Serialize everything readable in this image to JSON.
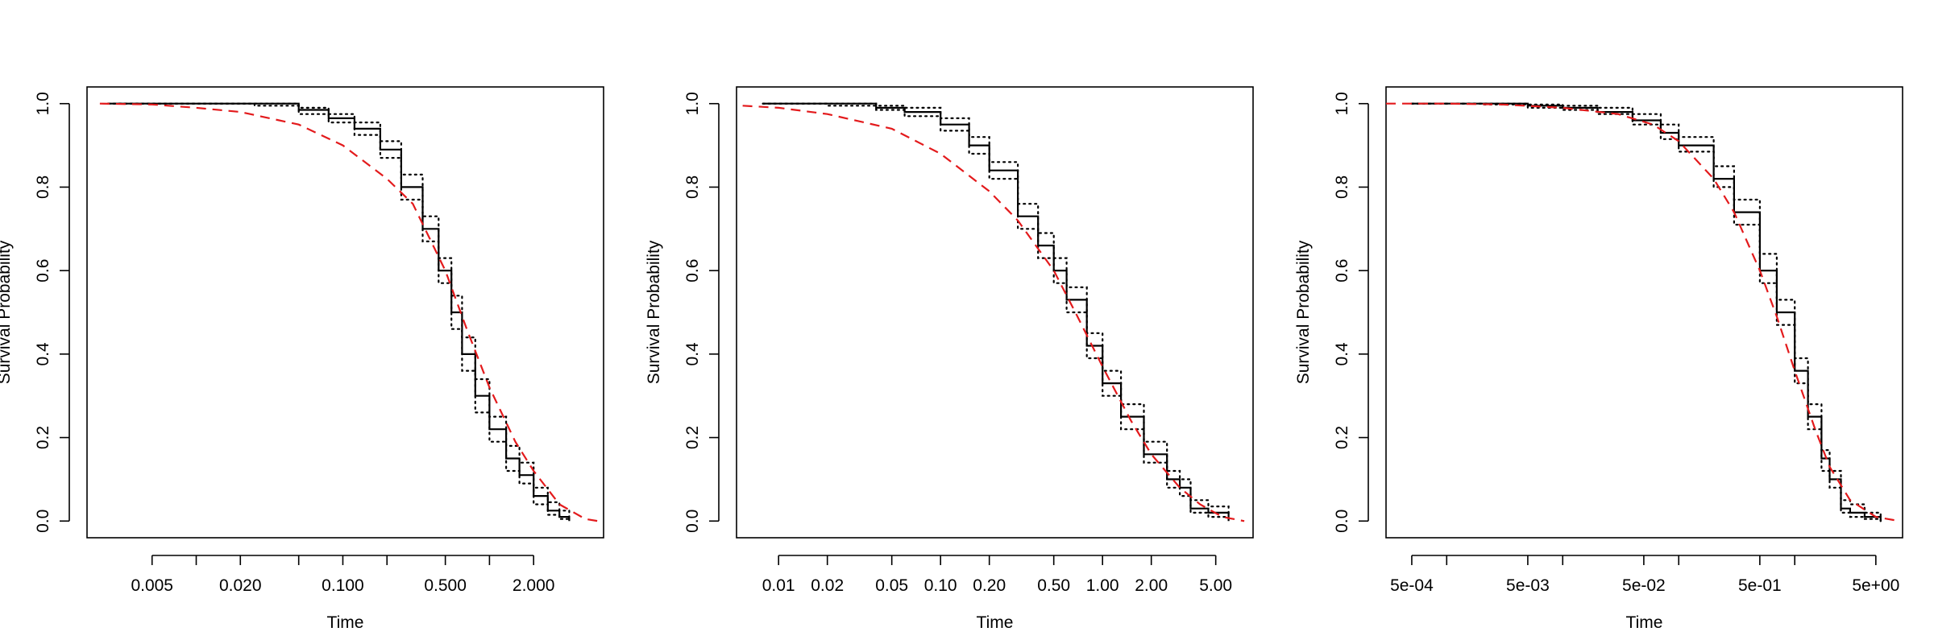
{
  "colors": {
    "km": "#000000",
    "ci": "#000000",
    "fit": "#e31a1c"
  },
  "chart_data": [
    {
      "type": "line",
      "xscale": "log",
      "xlabel": "Time",
      "ylabel": "Survival Probability",
      "xlim": [
        0.0018,
        6.0
      ],
      "ylim": [
        -0.04,
        1.04
      ],
      "grid": false,
      "legend": "none",
      "x_ticks": [
        {
          "v": 0.005,
          "label": "0.005"
        },
        {
          "v": 0.01,
          "label": ""
        },
        {
          "v": 0.02,
          "label": "0.020"
        },
        {
          "v": 0.05,
          "label": ""
        },
        {
          "v": 0.1,
          "label": "0.100"
        },
        {
          "v": 0.2,
          "label": ""
        },
        {
          "v": 0.5,
          "label": "0.500"
        },
        {
          "v": 1.0,
          "label": ""
        },
        {
          "v": 2.0,
          "label": "2.000"
        }
      ],
      "y_ticks": [
        {
          "v": 0.0,
          "label": "0.0"
        },
        {
          "v": 0.2,
          "label": "0.2"
        },
        {
          "v": 0.4,
          "label": "0.4"
        },
        {
          "v": 0.6,
          "label": "0.6"
        },
        {
          "v": 0.8,
          "label": "0.8"
        },
        {
          "v": 1.0,
          "label": "1.0"
        }
      ],
      "series": [
        {
          "role": "km",
          "x": [
            0.0025,
            0.01,
            0.025,
            0.05,
            0.08,
            0.12,
            0.18,
            0.25,
            0.35,
            0.45,
            0.55,
            0.65,
            0.8,
            1.0,
            1.3,
            1.6,
            2.0,
            2.5,
            3.0,
            3.5
          ],
          "y": [
            1.0,
            1.0,
            1.0,
            0.985,
            0.965,
            0.94,
            0.89,
            0.8,
            0.7,
            0.6,
            0.5,
            0.4,
            0.3,
            0.22,
            0.15,
            0.11,
            0.06,
            0.025,
            0.01,
            0.0
          ]
        },
        {
          "role": "ci",
          "x": [
            0.0025,
            0.01,
            0.025,
            0.05,
            0.08,
            0.12,
            0.18,
            0.25,
            0.35,
            0.45,
            0.55,
            0.65,
            0.8,
            1.0,
            1.3,
            1.6,
            2.0,
            2.5,
            3.0,
            3.5
          ],
          "y": [
            1.0,
            1.0,
            1.0,
            0.99,
            0.975,
            0.955,
            0.91,
            0.83,
            0.73,
            0.63,
            0.54,
            0.44,
            0.34,
            0.25,
            0.18,
            0.14,
            0.08,
            0.045,
            0.025,
            0.0
          ]
        },
        {
          "role": "ci",
          "x": [
            0.0025,
            0.01,
            0.025,
            0.05,
            0.08,
            0.12,
            0.18,
            0.25,
            0.35,
            0.45,
            0.55,
            0.65,
            0.8,
            1.0,
            1.3,
            1.6,
            2.0,
            2.5,
            3.0,
            3.5
          ],
          "y": [
            1.0,
            1.0,
            0.995,
            0.975,
            0.955,
            0.925,
            0.87,
            0.77,
            0.67,
            0.57,
            0.46,
            0.36,
            0.26,
            0.19,
            0.12,
            0.09,
            0.04,
            0.015,
            0.005,
            0.0
          ]
        },
        {
          "role": "fit",
          "x": [
            0.0022,
            0.005,
            0.01,
            0.02,
            0.05,
            0.1,
            0.2,
            0.3,
            0.5,
            0.7,
            1.0,
            1.5,
            2.0,
            3.0,
            4.5,
            5.5
          ],
          "y": [
            1.0,
            0.998,
            0.99,
            0.98,
            0.95,
            0.9,
            0.82,
            0.76,
            0.6,
            0.46,
            0.32,
            0.19,
            0.12,
            0.04,
            0.005,
            0.0
          ]
        }
      ]
    },
    {
      "type": "line",
      "xscale": "log",
      "xlabel": "Time",
      "ylabel": "Survival Probability",
      "xlim": [
        0.0055,
        8.5
      ],
      "ylim": [
        -0.04,
        1.04
      ],
      "grid": false,
      "legend": "none",
      "x_ticks": [
        {
          "v": 0.01,
          "label": "0.01"
        },
        {
          "v": 0.02,
          "label": "0.02"
        },
        {
          "v": 0.05,
          "label": "0.05"
        },
        {
          "v": 0.1,
          "label": "0.10"
        },
        {
          "v": 0.2,
          "label": "0.20"
        },
        {
          "v": 0.5,
          "label": "0.50"
        },
        {
          "v": 1.0,
          "label": "1.00"
        },
        {
          "v": 2.0,
          "label": "2.00"
        },
        {
          "v": 5.0,
          "label": "5.00"
        }
      ],
      "y_ticks": [
        {
          "v": 0.0,
          "label": "0.0"
        },
        {
          "v": 0.2,
          "label": "0.2"
        },
        {
          "v": 0.4,
          "label": "0.4"
        },
        {
          "v": 0.6,
          "label": "0.6"
        },
        {
          "v": 0.8,
          "label": "0.8"
        },
        {
          "v": 1.0,
          "label": "1.0"
        }
      ],
      "series": [
        {
          "role": "km",
          "x": [
            0.008,
            0.02,
            0.04,
            0.06,
            0.1,
            0.15,
            0.2,
            0.3,
            0.4,
            0.5,
            0.6,
            0.8,
            1.0,
            1.3,
            1.8,
            2.5,
            3.0,
            3.5,
            4.5,
            6.0
          ],
          "y": [
            1.0,
            1.0,
            0.99,
            0.98,
            0.95,
            0.9,
            0.84,
            0.73,
            0.66,
            0.6,
            0.53,
            0.42,
            0.33,
            0.25,
            0.16,
            0.1,
            0.08,
            0.03,
            0.02,
            0.0
          ]
        },
        {
          "role": "ci",
          "x": [
            0.008,
            0.02,
            0.04,
            0.06,
            0.1,
            0.15,
            0.2,
            0.3,
            0.4,
            0.5,
            0.6,
            0.8,
            1.0,
            1.3,
            1.8,
            2.5,
            3.0,
            3.5,
            4.5,
            6.0
          ],
          "y": [
            1.0,
            1.0,
            0.995,
            0.99,
            0.965,
            0.92,
            0.86,
            0.76,
            0.69,
            0.63,
            0.56,
            0.45,
            0.36,
            0.28,
            0.19,
            0.12,
            0.1,
            0.05,
            0.035,
            0.01
          ]
        },
        {
          "role": "ci",
          "x": [
            0.008,
            0.02,
            0.04,
            0.06,
            0.1,
            0.15,
            0.2,
            0.3,
            0.4,
            0.5,
            0.6,
            0.8,
            1.0,
            1.3,
            1.8,
            2.5,
            3.0,
            3.5,
            4.5,
            6.0
          ],
          "y": [
            1.0,
            0.995,
            0.985,
            0.97,
            0.935,
            0.88,
            0.82,
            0.7,
            0.63,
            0.57,
            0.5,
            0.39,
            0.3,
            0.22,
            0.14,
            0.08,
            0.06,
            0.02,
            0.01,
            0.0
          ]
        },
        {
          "role": "fit",
          "x": [
            0.006,
            0.01,
            0.02,
            0.05,
            0.1,
            0.2,
            0.3,
            0.5,
            0.7,
            1.0,
            1.5,
            2.0,
            3.0,
            4.0,
            5.5,
            7.5
          ],
          "y": [
            0.995,
            0.99,
            0.975,
            0.94,
            0.88,
            0.79,
            0.72,
            0.6,
            0.49,
            0.37,
            0.24,
            0.16,
            0.08,
            0.04,
            0.01,
            0.0
          ]
        }
      ]
    },
    {
      "type": "line",
      "xscale": "log",
      "xlabel": "Time",
      "ylabel": "Survival Probability",
      "xlim": [
        0.0003,
        8.5
      ],
      "ylim": [
        -0.04,
        1.04
      ],
      "grid": false,
      "legend": "none",
      "x_ticks": [
        {
          "v": 0.0005,
          "label": "5e-04"
        },
        {
          "v": 0.001,
          "label": ""
        },
        {
          "v": 0.005,
          "label": "5e-03"
        },
        {
          "v": 0.01,
          "label": ""
        },
        {
          "v": 0.05,
          "label": "5e-02"
        },
        {
          "v": 0.1,
          "label": ""
        },
        {
          "v": 0.5,
          "label": "5e-01"
        },
        {
          "v": 1.0,
          "label": ""
        },
        {
          "v": 5.0,
          "label": "5e+00"
        }
      ],
      "y_ticks": [
        {
          "v": 0.0,
          "label": "0.0"
        },
        {
          "v": 0.2,
          "label": "0.2"
        },
        {
          "v": 0.4,
          "label": "0.4"
        },
        {
          "v": 0.6,
          "label": "0.6"
        },
        {
          "v": 0.8,
          "label": "0.8"
        },
        {
          "v": 1.0,
          "label": "1.0"
        }
      ],
      "series": [
        {
          "role": "km",
          "x": [
            0.0005,
            0.002,
            0.005,
            0.01,
            0.02,
            0.04,
            0.07,
            0.1,
            0.2,
            0.3,
            0.5,
            0.7,
            1.0,
            1.3,
            1.7,
            2.0,
            2.5,
            3.0,
            4.0,
            5.5
          ],
          "y": [
            1.0,
            1.0,
            0.995,
            0.99,
            0.98,
            0.96,
            0.93,
            0.9,
            0.82,
            0.74,
            0.6,
            0.5,
            0.36,
            0.25,
            0.15,
            0.1,
            0.03,
            0.02,
            0.01,
            0.0
          ]
        },
        {
          "role": "ci",
          "x": [
            0.0005,
            0.002,
            0.005,
            0.01,
            0.02,
            0.04,
            0.07,
            0.1,
            0.2,
            0.3,
            0.5,
            0.7,
            1.0,
            1.3,
            1.7,
            2.0,
            2.5,
            3.0,
            4.0,
            5.5
          ],
          "y": [
            1.0,
            1.0,
            0.998,
            0.995,
            0.99,
            0.975,
            0.95,
            0.92,
            0.85,
            0.77,
            0.64,
            0.53,
            0.39,
            0.28,
            0.17,
            0.12,
            0.05,
            0.04,
            0.02,
            0.0
          ]
        },
        {
          "role": "ci",
          "x": [
            0.0005,
            0.002,
            0.005,
            0.01,
            0.02,
            0.04,
            0.07,
            0.1,
            0.2,
            0.3,
            0.5,
            0.7,
            1.0,
            1.3,
            1.7,
            2.0,
            2.5,
            3.0,
            4.0,
            5.5
          ],
          "y": [
            1.0,
            0.998,
            0.99,
            0.985,
            0.975,
            0.95,
            0.915,
            0.885,
            0.8,
            0.71,
            0.57,
            0.47,
            0.33,
            0.22,
            0.12,
            0.08,
            0.02,
            0.01,
            0.005,
            0.0
          ]
        },
        {
          "role": "fit",
          "x": [
            0.0003,
            0.001,
            0.003,
            0.01,
            0.03,
            0.06,
            0.1,
            0.2,
            0.3,
            0.5,
            0.7,
            1.0,
            1.5,
            2.0,
            3.0,
            5.0,
            8.0
          ],
          "y": [
            1.0,
            1.0,
            0.998,
            0.99,
            0.975,
            0.95,
            0.91,
            0.82,
            0.74,
            0.6,
            0.49,
            0.36,
            0.22,
            0.13,
            0.05,
            0.01,
            0.0
          ]
        }
      ]
    }
  ]
}
